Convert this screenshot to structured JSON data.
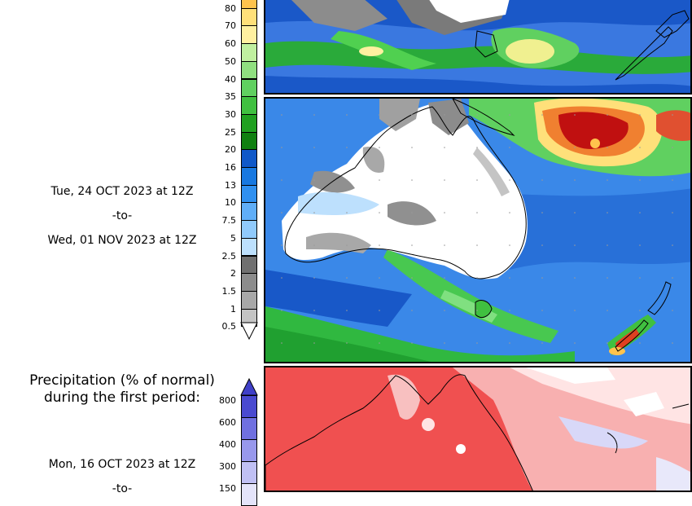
{
  "period_one": {
    "start": "Tue, 24 OCT 2023 at 12Z",
    "to": "-to-",
    "end": "Wed, 01 NOV 2023 at 12Z"
  },
  "precip_legend": {
    "ticks": [
      "80",
      "70",
      "60",
      "50",
      "40",
      "35",
      "30",
      "25",
      "20",
      "16",
      "13",
      "10",
      "7.5",
      "5",
      "2.5",
      "2",
      "1.5",
      "1",
      "0.5"
    ],
    "colors": [
      "#ffc34d",
      "#ffe07a",
      "#fff0a0",
      "#c0f0a0",
      "#90e080",
      "#60d060",
      "#40c040",
      "#20a020",
      "#108010",
      "#1058c8",
      "#1878e0",
      "#3090f0",
      "#60aef8",
      "#90cafc",
      "#bde0fd",
      "#707070",
      "#8c8c8c",
      "#a8a8a8",
      "#c4c4c4"
    ]
  },
  "percent_section": {
    "title_line1": "Precipitation (% of normal)",
    "title_line2": "during the first period:",
    "ticks": [
      "800",
      "600",
      "400",
      "300",
      "150"
    ],
    "colors": [
      "#4a4ad0",
      "#7070e0",
      "#9898ec",
      "#c0c0f4",
      "#e4e4fa"
    ]
  },
  "period_two": {
    "start": "Mon, 16 OCT 2023 at 12Z",
    "to": "-to-"
  }
}
